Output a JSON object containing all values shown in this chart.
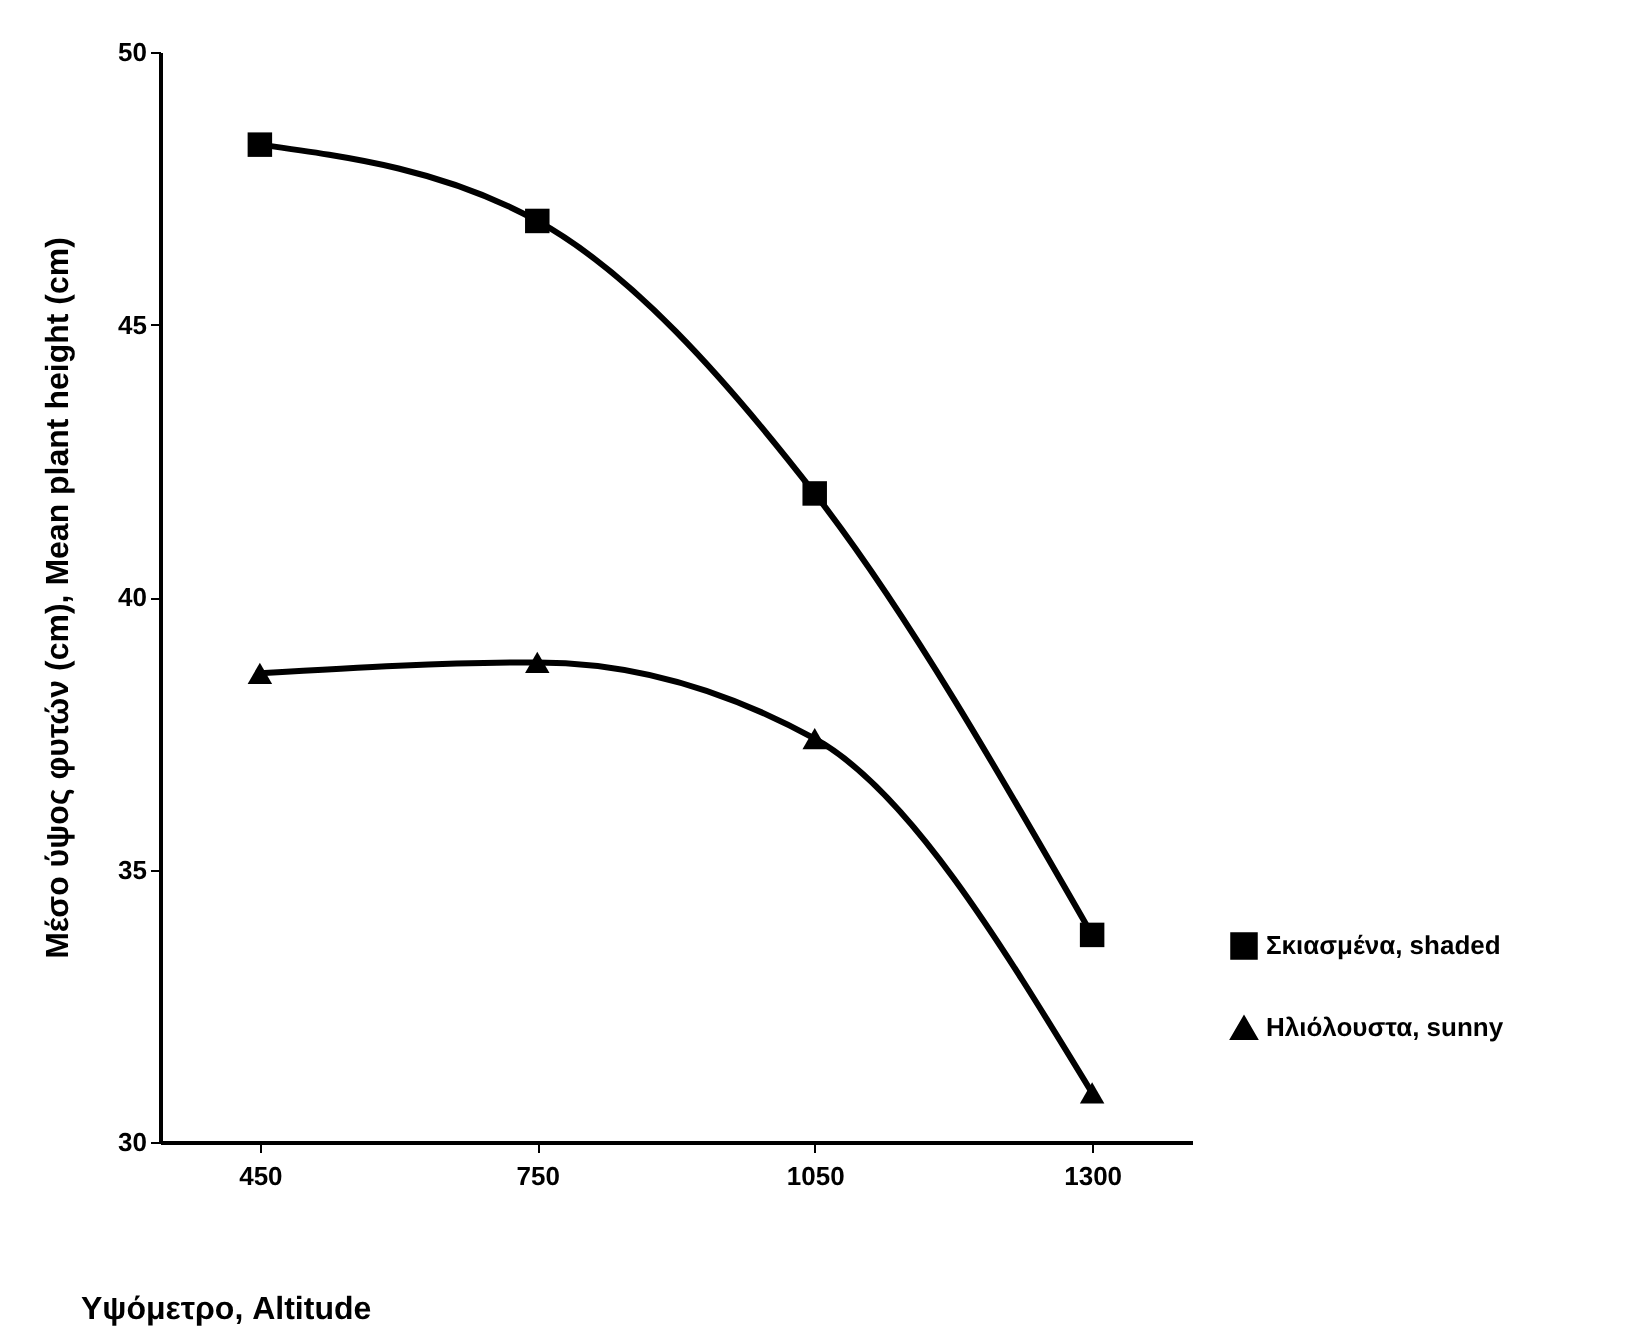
{
  "chart_data": {
    "type": "line",
    "xlabel": "Υψόμετρο, Altitude",
    "ylabel": "Μέσο ύψος φυτών (cm), Mean plant height (cm)",
    "categories": [
      "450",
      "750",
      "1050",
      "1300"
    ],
    "series": [
      {
        "name": "Σκιασμένα, shaded",
        "color": "#000000",
        "marker": "square",
        "values": [
          48.3,
          46.9,
          41.9,
          33.8
        ]
      },
      {
        "name": "Ηλιόλουστα, sunny",
        "color": "#000000",
        "marker": "triangle",
        "values": [
          38.6,
          38.8,
          37.4,
          30.9
        ]
      }
    ],
    "ylim": [
      30,
      50
    ],
    "yticks": [
      30,
      35,
      40,
      45,
      50
    ],
    "grid": false,
    "legend": "bottom right",
    "line_style": "solid"
  }
}
